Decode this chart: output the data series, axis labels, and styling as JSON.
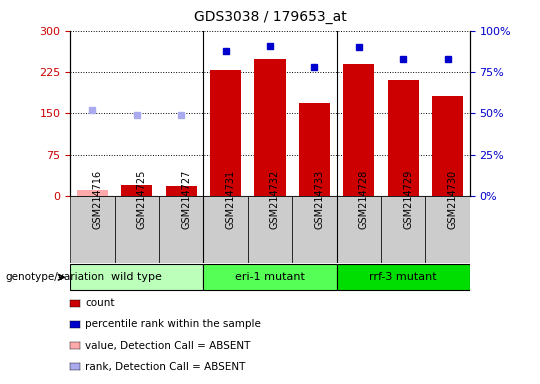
{
  "title": "GDS3038 / 179653_at",
  "samples": [
    "GSM214716",
    "GSM214725",
    "GSM214727",
    "GSM214731",
    "GSM214732",
    "GSM214733",
    "GSM214728",
    "GSM214729",
    "GSM214730"
  ],
  "count_values": [
    10,
    20,
    18,
    228,
    248,
    168,
    240,
    210,
    182
  ],
  "percentile_values": [
    52,
    49,
    49,
    88,
    91,
    78,
    90,
    83,
    83
  ],
  "count_absent": [
    true,
    false,
    false,
    false,
    false,
    false,
    false,
    false,
    false
  ],
  "percentile_absent": [
    true,
    true,
    true,
    false,
    false,
    false,
    false,
    false,
    false
  ],
  "groups": [
    {
      "label": "wild type",
      "start": 0,
      "end": 3,
      "color": "#bbffbb"
    },
    {
      "label": "eri-1 mutant",
      "start": 3,
      "end": 6,
      "color": "#55ff55"
    },
    {
      "label": "rrf-3 mutant",
      "start": 6,
      "end": 9,
      "color": "#00dd00"
    }
  ],
  "ylim_left": [
    0,
    300
  ],
  "ylim_right": [
    0,
    100
  ],
  "yticks_left": [
    0,
    75,
    150,
    225,
    300
  ],
  "yticks_right": [
    0,
    25,
    50,
    75,
    100
  ],
  "bar_color_present": "#cc0000",
  "bar_color_absent": "#ffaaaa",
  "dot_color_present": "#0000cc",
  "dot_color_absent": "#aaaaee",
  "bg_color": "#cccccc",
  "cell_bg": "#cccccc",
  "legend_items": [
    {
      "color": "#cc0000",
      "label": "count"
    },
    {
      "color": "#0000cc",
      "label": "percentile rank within the sample"
    },
    {
      "color": "#ffaaaa",
      "label": "value, Detection Call = ABSENT"
    },
    {
      "color": "#aaaaee",
      "label": "rank, Detection Call = ABSENT"
    }
  ],
  "fig_width": 5.4,
  "fig_height": 3.84,
  "dpi": 100
}
